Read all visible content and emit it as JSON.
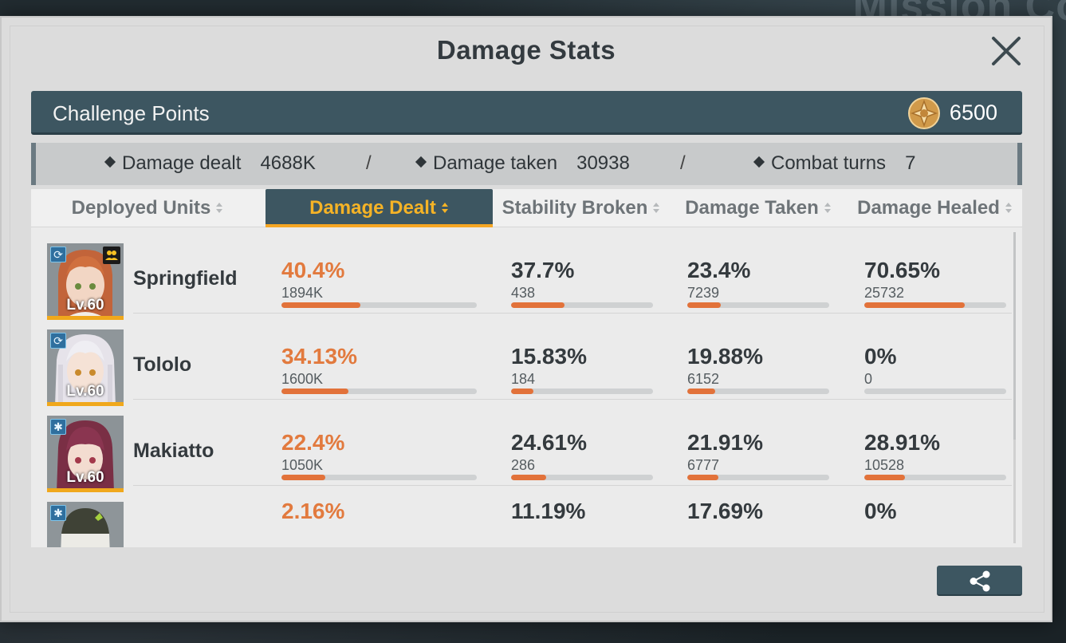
{
  "background_text": "Mission Co",
  "modal": {
    "title": "Damage Stats",
    "challenge": {
      "label": "Challenge Points",
      "value": "6500"
    },
    "summary": {
      "damage_dealt_label": "Damage dealt",
      "damage_dealt_value": "4688K",
      "damage_taken_label": "Damage taken",
      "damage_taken_value": "30938",
      "combat_turns_label": "Combat turns",
      "combat_turns_value": "7",
      "separator": "/"
    },
    "columns": {
      "units": "Deployed Units",
      "dealt": "Damage Dealt",
      "stability": "Stability Broken",
      "taken": "Damage Taken",
      "healed": "Damage Healed"
    },
    "active_column": "dealt",
    "rows": [
      {
        "name": "Springfield",
        "level": "Lv.60",
        "dealt": {
          "pct": "40.4%",
          "raw": "1894K",
          "fraction": 0.404
        },
        "stability": {
          "pct": "37.7%",
          "raw": "438",
          "fraction": 0.377
        },
        "taken": {
          "pct": "23.4%",
          "raw": "7239",
          "fraction": 0.234
        },
        "healed": {
          "pct": "70.65%",
          "raw": "25732",
          "fraction": 0.7065
        }
      },
      {
        "name": "Tololo",
        "level": "Lv.60",
        "dealt": {
          "pct": "34.13%",
          "raw": "1600K",
          "fraction": 0.3413
        },
        "stability": {
          "pct": "15.83%",
          "raw": "184",
          "fraction": 0.1583
        },
        "taken": {
          "pct": "19.88%",
          "raw": "6152",
          "fraction": 0.1988
        },
        "healed": {
          "pct": "0%",
          "raw": "0",
          "fraction": 0
        }
      },
      {
        "name": "Makiatto",
        "level": "Lv.60",
        "dealt": {
          "pct": "22.4%",
          "raw": "1050K",
          "fraction": 0.224
        },
        "stability": {
          "pct": "24.61%",
          "raw": "286",
          "fraction": 0.2461
        },
        "taken": {
          "pct": "21.91%",
          "raw": "6777",
          "fraction": 0.2191
        },
        "healed": {
          "pct": "28.91%",
          "raw": "10528",
          "fraction": 0.2891
        }
      },
      {
        "name": "",
        "level": "",
        "dealt": {
          "pct": "2.16%",
          "raw": "",
          "fraction": 0.0216
        },
        "stability": {
          "pct": "11.19%",
          "raw": "",
          "fraction": 0.1119
        },
        "taken": {
          "pct": "17.69%",
          "raw": "",
          "fraction": 0.1769
        },
        "healed": {
          "pct": "0%",
          "raw": "",
          "fraction": 0
        }
      }
    ],
    "colors": {
      "accent": "#f5a623",
      "header": "#3d5661",
      "bar": "#e2723a",
      "highlight_text": "#e27a3e"
    }
  }
}
